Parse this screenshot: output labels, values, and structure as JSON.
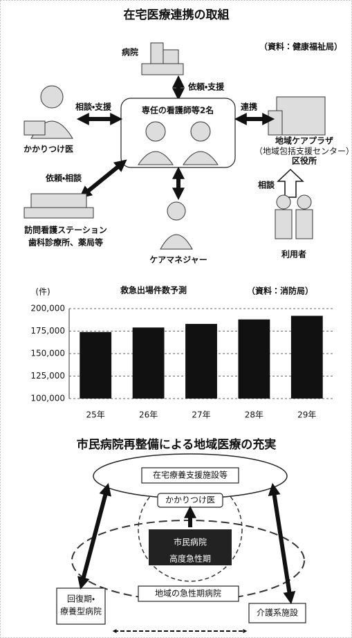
{
  "top_diagram": {
    "title": "在宅医療連携の取組",
    "source": "（資料：健康福祉局）",
    "center": "専任の看護師等2名",
    "hospital": "病院",
    "doctor": "かかりつけ医",
    "plaza": [
      "地域ケアプラザ",
      "（地域包括支援センター）",
      "区役所"
    ],
    "station": [
      "訪問看護ステーション",
      "歯科診療所、薬局等"
    ],
    "care_manager": "ケアマネジャー",
    "user": "利用者",
    "edges": {
      "hospital": "依頼・支援",
      "doctor": "相談・支援",
      "plaza": "連携",
      "station": "依頼・相談",
      "user": "相談"
    }
  },
  "chart_data": {
    "type": "bar",
    "title": "救急出場件数予測",
    "unit": "(件)",
    "source": "（資料：消防局）",
    "categories": [
      "25年",
      "26年",
      "27年",
      "28年",
      "29年"
    ],
    "values": [
      174000,
      179000,
      183000,
      188000,
      192000
    ],
    "color": "#111111",
    "ylim": [
      100000,
      200000
    ],
    "yticks": [
      {
        "value": 100000,
        "label": "100,000"
      },
      {
        "value": 125000,
        "label": "125,000"
      },
      {
        "value": 150000,
        "label": "150,000"
      },
      {
        "value": 175000,
        "label": "175,000"
      },
      {
        "value": 200000,
        "label": "200,000"
      }
    ],
    "grid": true
  },
  "bottom_diagram": {
    "title": "市民病院再整備による地域医療の充実",
    "home_care": "在宅療養支援施設等",
    "family_doctor": "かかりつけ医",
    "city_hospital": "市民病院",
    "advanced": "高度急性期",
    "recovery": [
      "回復期・",
      "療養型病院"
    ],
    "regional": "地域の急性期病院",
    "nursing": "介護系施設"
  }
}
